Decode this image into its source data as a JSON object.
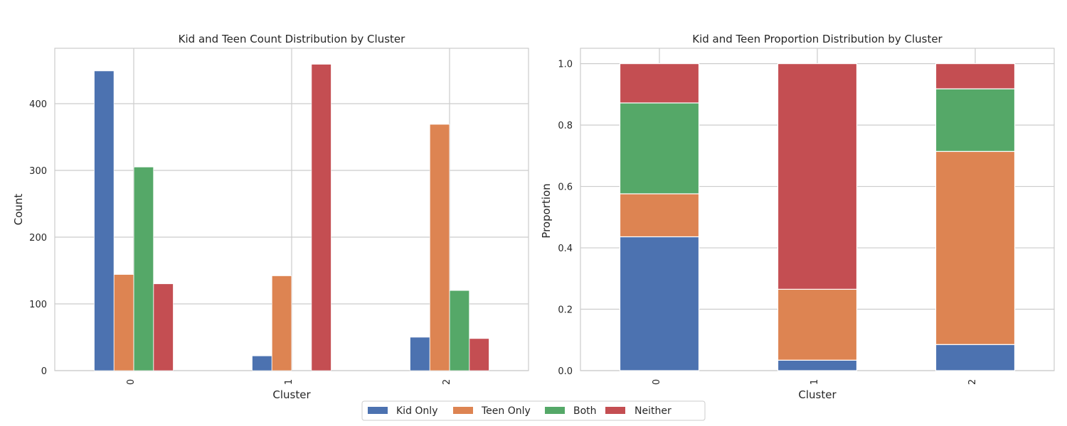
{
  "legend": {
    "entries": [
      "Kid Only",
      "Teen Only",
      "Both",
      "Neither"
    ]
  },
  "colors": {
    "Kid Only": "#4c72b0",
    "Teen Only": "#dd8452",
    "Both": "#55a868",
    "Neither": "#c44e52"
  },
  "chart_data": [
    {
      "type": "bar",
      "title": "Kid and Teen Count Distribution by Cluster",
      "xlabel": "Cluster",
      "ylabel": "Count",
      "categories": [
        "0",
        "1",
        "2"
      ],
      "ylim": [
        0,
        483
      ],
      "yticks": [
        0,
        100,
        200,
        300,
        400
      ],
      "grid": true,
      "series": [
        {
          "name": "Kid Only",
          "values": [
            449,
            22,
            50
          ]
        },
        {
          "name": "Teen Only",
          "values": [
            144,
            142,
            369
          ]
        },
        {
          "name": "Both",
          "values": [
            305,
            0,
            120
          ]
        },
        {
          "name": "Neither",
          "values": [
            130,
            459,
            48
          ]
        }
      ]
    },
    {
      "type": "bar",
      "stacked": true,
      "title": "Kid and Teen Proportion Distribution by Cluster",
      "xlabel": "Cluster",
      "ylabel": "Proportion",
      "categories": [
        "0",
        "1",
        "2"
      ],
      "ylim": [
        0,
        1.05
      ],
      "yticks": [
        "0.0",
        "0.2",
        "0.4",
        "0.6",
        "0.8",
        "1.0"
      ],
      "grid": true,
      "series": [
        {
          "name": "Kid Only",
          "values": [
            0.436,
            0.034,
            0.085
          ]
        },
        {
          "name": "Teen Only",
          "values": [
            0.14,
            0.231,
            0.629
          ]
        },
        {
          "name": "Both",
          "values": [
            0.296,
            0.0,
            0.204
          ]
        },
        {
          "name": "Neither",
          "values": [
            0.128,
            0.735,
            0.082
          ]
        }
      ]
    }
  ]
}
